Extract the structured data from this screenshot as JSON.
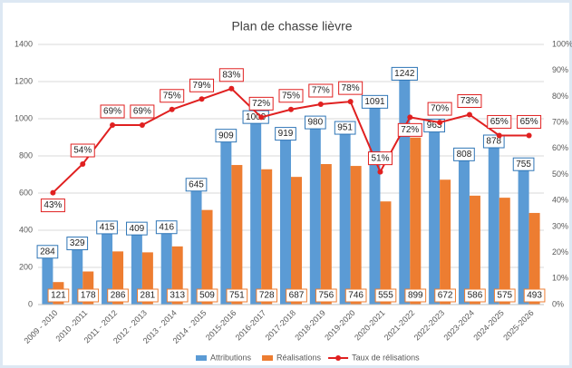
{
  "chart_data": {
    "type": "bar_line",
    "title": "Plan de chasse lièvre",
    "categories": [
      "2009 - 2010",
      "2010 -2011",
      "2011 - 2012",
      "2012 - 2013",
      "2013 - 2014",
      "2014 - 2015",
      "2015-2016",
      "2016-2017",
      "2017-2018",
      "2018-2019",
      "2019-2020",
      "2020-2021",
      "2021-2022",
      "2022-2023",
      "2023-2024",
      "2024-2025",
      "2025-2026"
    ],
    "series": [
      {
        "name": "Attributions",
        "type": "bar",
        "color": "#5b9bd5",
        "label_border": "#2e75b6",
        "values": [
          284,
          329,
          415,
          409,
          416,
          645,
          909,
          1009,
          919,
          980,
          951,
          1091,
          1242,
          963,
          808,
          878,
          755
        ]
      },
      {
        "name": "Réalisations",
        "type": "bar",
        "color": "#ed7d31",
        "label_border": "#ed7d31",
        "values": [
          121,
          178,
          286,
          281,
          313,
          509,
          751,
          728,
          687,
          756,
          746,
          555,
          899,
          672,
          586,
          575,
          493
        ]
      },
      {
        "name": "Taux de rélisations",
        "type": "line",
        "axis": "y2",
        "color": "#e02020",
        "label_border": "#e02020",
        "values": [
          43,
          54,
          69,
          69,
          75,
          79,
          83,
          72,
          75,
          77,
          78,
          51,
          72,
          70,
          73,
          65,
          65
        ],
        "value_labels": [
          "43%",
          "54%",
          "69%",
          "69%",
          "75%",
          "79%",
          "83%",
          "72%",
          "75%",
          "77%",
          "78%",
          "51%",
          "72%",
          "70%",
          "73%",
          "65%",
          "65%"
        ]
      }
    ],
    "ylim": [
      0,
      1400
    ],
    "yticks": [
      0,
      200,
      400,
      600,
      800,
      1000,
      1200,
      1400
    ],
    "y2lim": [
      0,
      100
    ],
    "y2ticks": [
      {
        "value": 0,
        "label": "0%"
      },
      {
        "value": 10,
        "label": "10%"
      },
      {
        "value": 20,
        "label": "20%"
      },
      {
        "value": 30,
        "label": "30%"
      },
      {
        "value": 40,
        "label": "40%"
      },
      {
        "value": 50,
        "label": "50%"
      },
      {
        "value": 60,
        "label": "60%"
      },
      {
        "value": 70,
        "label": "70%"
      },
      {
        "value": 80,
        "label": "80%"
      },
      {
        "value": 90,
        "label": "90%"
      },
      {
        "value": 100,
        "label": "100%"
      }
    ],
    "grid": true,
    "legend": "bottom"
  }
}
